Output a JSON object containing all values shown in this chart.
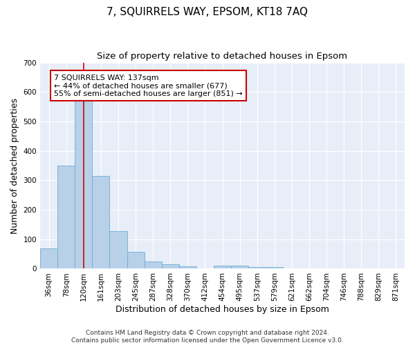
{
  "title": "7, SQUIRRELS WAY, EPSOM, KT18 7AQ",
  "subtitle": "Size of property relative to detached houses in Epsom",
  "xlabel": "Distribution of detached houses by size in Epsom",
  "ylabel": "Number of detached properties",
  "bar_color": "#b8d0e8",
  "bar_edge_color": "#6baed6",
  "background_color": "#e8eef8",
  "grid_color": "#ffffff",
  "categories": [
    "36sqm",
    "78sqm",
    "120sqm",
    "161sqm",
    "203sqm",
    "245sqm",
    "287sqm",
    "328sqm",
    "370sqm",
    "412sqm",
    "454sqm",
    "495sqm",
    "537sqm",
    "579sqm",
    "621sqm",
    "662sqm",
    "704sqm",
    "746sqm",
    "788sqm",
    "829sqm",
    "871sqm"
  ],
  "values": [
    70,
    350,
    570,
    315,
    128,
    57,
    25,
    15,
    8,
    0,
    10,
    10,
    5,
    5,
    0,
    0,
    0,
    0,
    0,
    0,
    0
  ],
  "ylim": [
    0,
    700
  ],
  "yticks": [
    0,
    100,
    200,
    300,
    400,
    500,
    600,
    700
  ],
  "property_bin_index": 2,
  "vline_color": "#cc0000",
  "annotation_text": "7 SQUIRRELS WAY: 137sqm\n← 44% of detached houses are smaller (677)\n55% of semi-detached houses are larger (851) →",
  "annotation_box_color": "#ffffff",
  "annotation_box_edge_color": "#cc0000",
  "footer_text": "Contains HM Land Registry data © Crown copyright and database right 2024.\nContains public sector information licensed under the Open Government Licence v3.0.",
  "title_fontsize": 11,
  "subtitle_fontsize": 9.5,
  "tick_fontsize": 7.5,
  "ylabel_fontsize": 9,
  "xlabel_fontsize": 9,
  "annotation_fontsize": 8,
  "footer_fontsize": 6.5
}
